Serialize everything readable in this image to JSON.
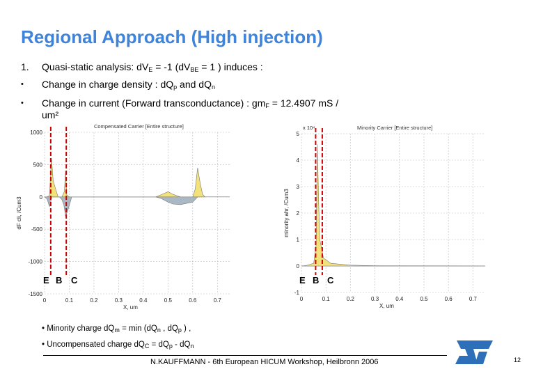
{
  "slide": {
    "title": "Regional Approach (High injection)",
    "bullets": {
      "b1_num": "1.",
      "b1_pre": "Quasi-static analysis: dV",
      "b1_sub1": "E",
      "b1_mid": " = -1 (dV",
      "b1_sub2": "BE",
      "b1_post": " = 1 ) induces  :",
      "b2_marker": "•",
      "b2_pre": "Change in charge density : dQ",
      "b2_sub1": "p",
      "b2_mid": "  and dQ",
      "b2_sub2": "n",
      "b3_marker": "•",
      "b3_pre": "Change in current (Forward transconductance) : gm",
      "b3_sub": "F",
      "b3_post": " = 12.4907 mS /",
      "b3_line2": "um²"
    },
    "bottom": {
      "line1_pre": "• Minority charge dQ",
      "line1_sub1": "m",
      "line1_mid1": " = min (dQ",
      "line1_sub2": "n",
      "line1_mid2": " , dQ",
      "line1_sub3": "p",
      "line1_post": " ) ,",
      "line2_pre": "• Uncompensated charge dQ",
      "line2_sub1": "C",
      "line2_mid": "  = dQ",
      "line2_sub2": "p",
      "line2_mid2": " - dQ",
      "line2_sub3": "n"
    },
    "footer": "N.KAUFFMANN - 6th European HICUM Workshop, Heilbronn 2006",
    "page_number": "12",
    "logo_text": "ST",
    "colors": {
      "title": "#3f84d9",
      "fill_yellow": "#f3e27a",
      "fill_gray": "#a9b8c4",
      "marker_red": "#cc0000",
      "logo_blue": "#2d6fb8"
    }
  },
  "chart_data": [
    {
      "type": "area",
      "title": "Compensated Carrier [Entire structure]",
      "xlabel": "X, um",
      "ylabel": "dF cli, /Cum3",
      "xlim": [
        0,
        0.75
      ],
      "ylim": [
        -1500,
        1000
      ],
      "xticks": [
        "0",
        "0.1",
        "0.2",
        "0.3",
        "0.4",
        "0.5",
        "0.6",
        "0.7"
      ],
      "yticks": [
        "1000",
        "500",
        "0",
        "-500",
        "-1000",
        "-1500"
      ],
      "markers": [
        "E",
        "B",
        "C"
      ],
      "series": [
        {
          "name": "positive",
          "x": [
            0,
            0.01,
            0.02,
            0.028,
            0.035,
            0.045,
            0.055,
            0.07,
            0.08,
            0.085,
            0.09,
            0.1,
            0.45,
            0.47,
            0.5,
            0.52,
            0.55,
            0.6,
            0.61,
            0.62,
            0.63,
            0.64,
            0.65
          ],
          "values": [
            0,
            0,
            20,
            600,
            250,
            120,
            0,
            0,
            80,
            400,
            30,
            0,
            0,
            30,
            80,
            40,
            0,
            0,
            120,
            450,
            220,
            40,
            0
          ]
        },
        {
          "name": "negative",
          "x": [
            0,
            0.01,
            0.02,
            0.03,
            0.06,
            0.07,
            0.078,
            0.085,
            0.095,
            0.11,
            0.45,
            0.47,
            0.5,
            0.52,
            0.55,
            0.6,
            0.62
          ],
          "values": [
            0,
            -30,
            -150,
            0,
            0,
            -40,
            -120,
            -300,
            -200,
            0,
            0,
            -20,
            -80,
            -110,
            -120,
            -80,
            0
          ]
        }
      ]
    },
    {
      "type": "area",
      "title": "Minority Carrier [Entire structure]",
      "xlabel": "X, um",
      "ylabel": "minority ahr, /Cum3",
      "xlim": [
        0,
        0.75
      ],
      "ylim": [
        -1,
        5
      ],
      "multiplier": "x 10⁴",
      "xticks": [
        "0",
        "0.1",
        "0.2",
        "0.3",
        "0.4",
        "0.5",
        "0.6",
        "0.7"
      ],
      "yticks": [
        "5",
        "4",
        "3",
        "2",
        "1",
        "0",
        "-1"
      ],
      "markers": [
        "E",
        "B",
        "C"
      ],
      "series": [
        {
          "name": "minority",
          "x": [
            0,
            0.02,
            0.05,
            0.06,
            0.065,
            0.07,
            0.075,
            0.09,
            0.12,
            0.2,
            0.3,
            0.75
          ],
          "values": [
            0,
            0.02,
            0.1,
            0.8,
            4.6,
            2.5,
            1.0,
            0.3,
            0.1,
            0.03,
            0.01,
            0
          ]
        }
      ]
    }
  ]
}
